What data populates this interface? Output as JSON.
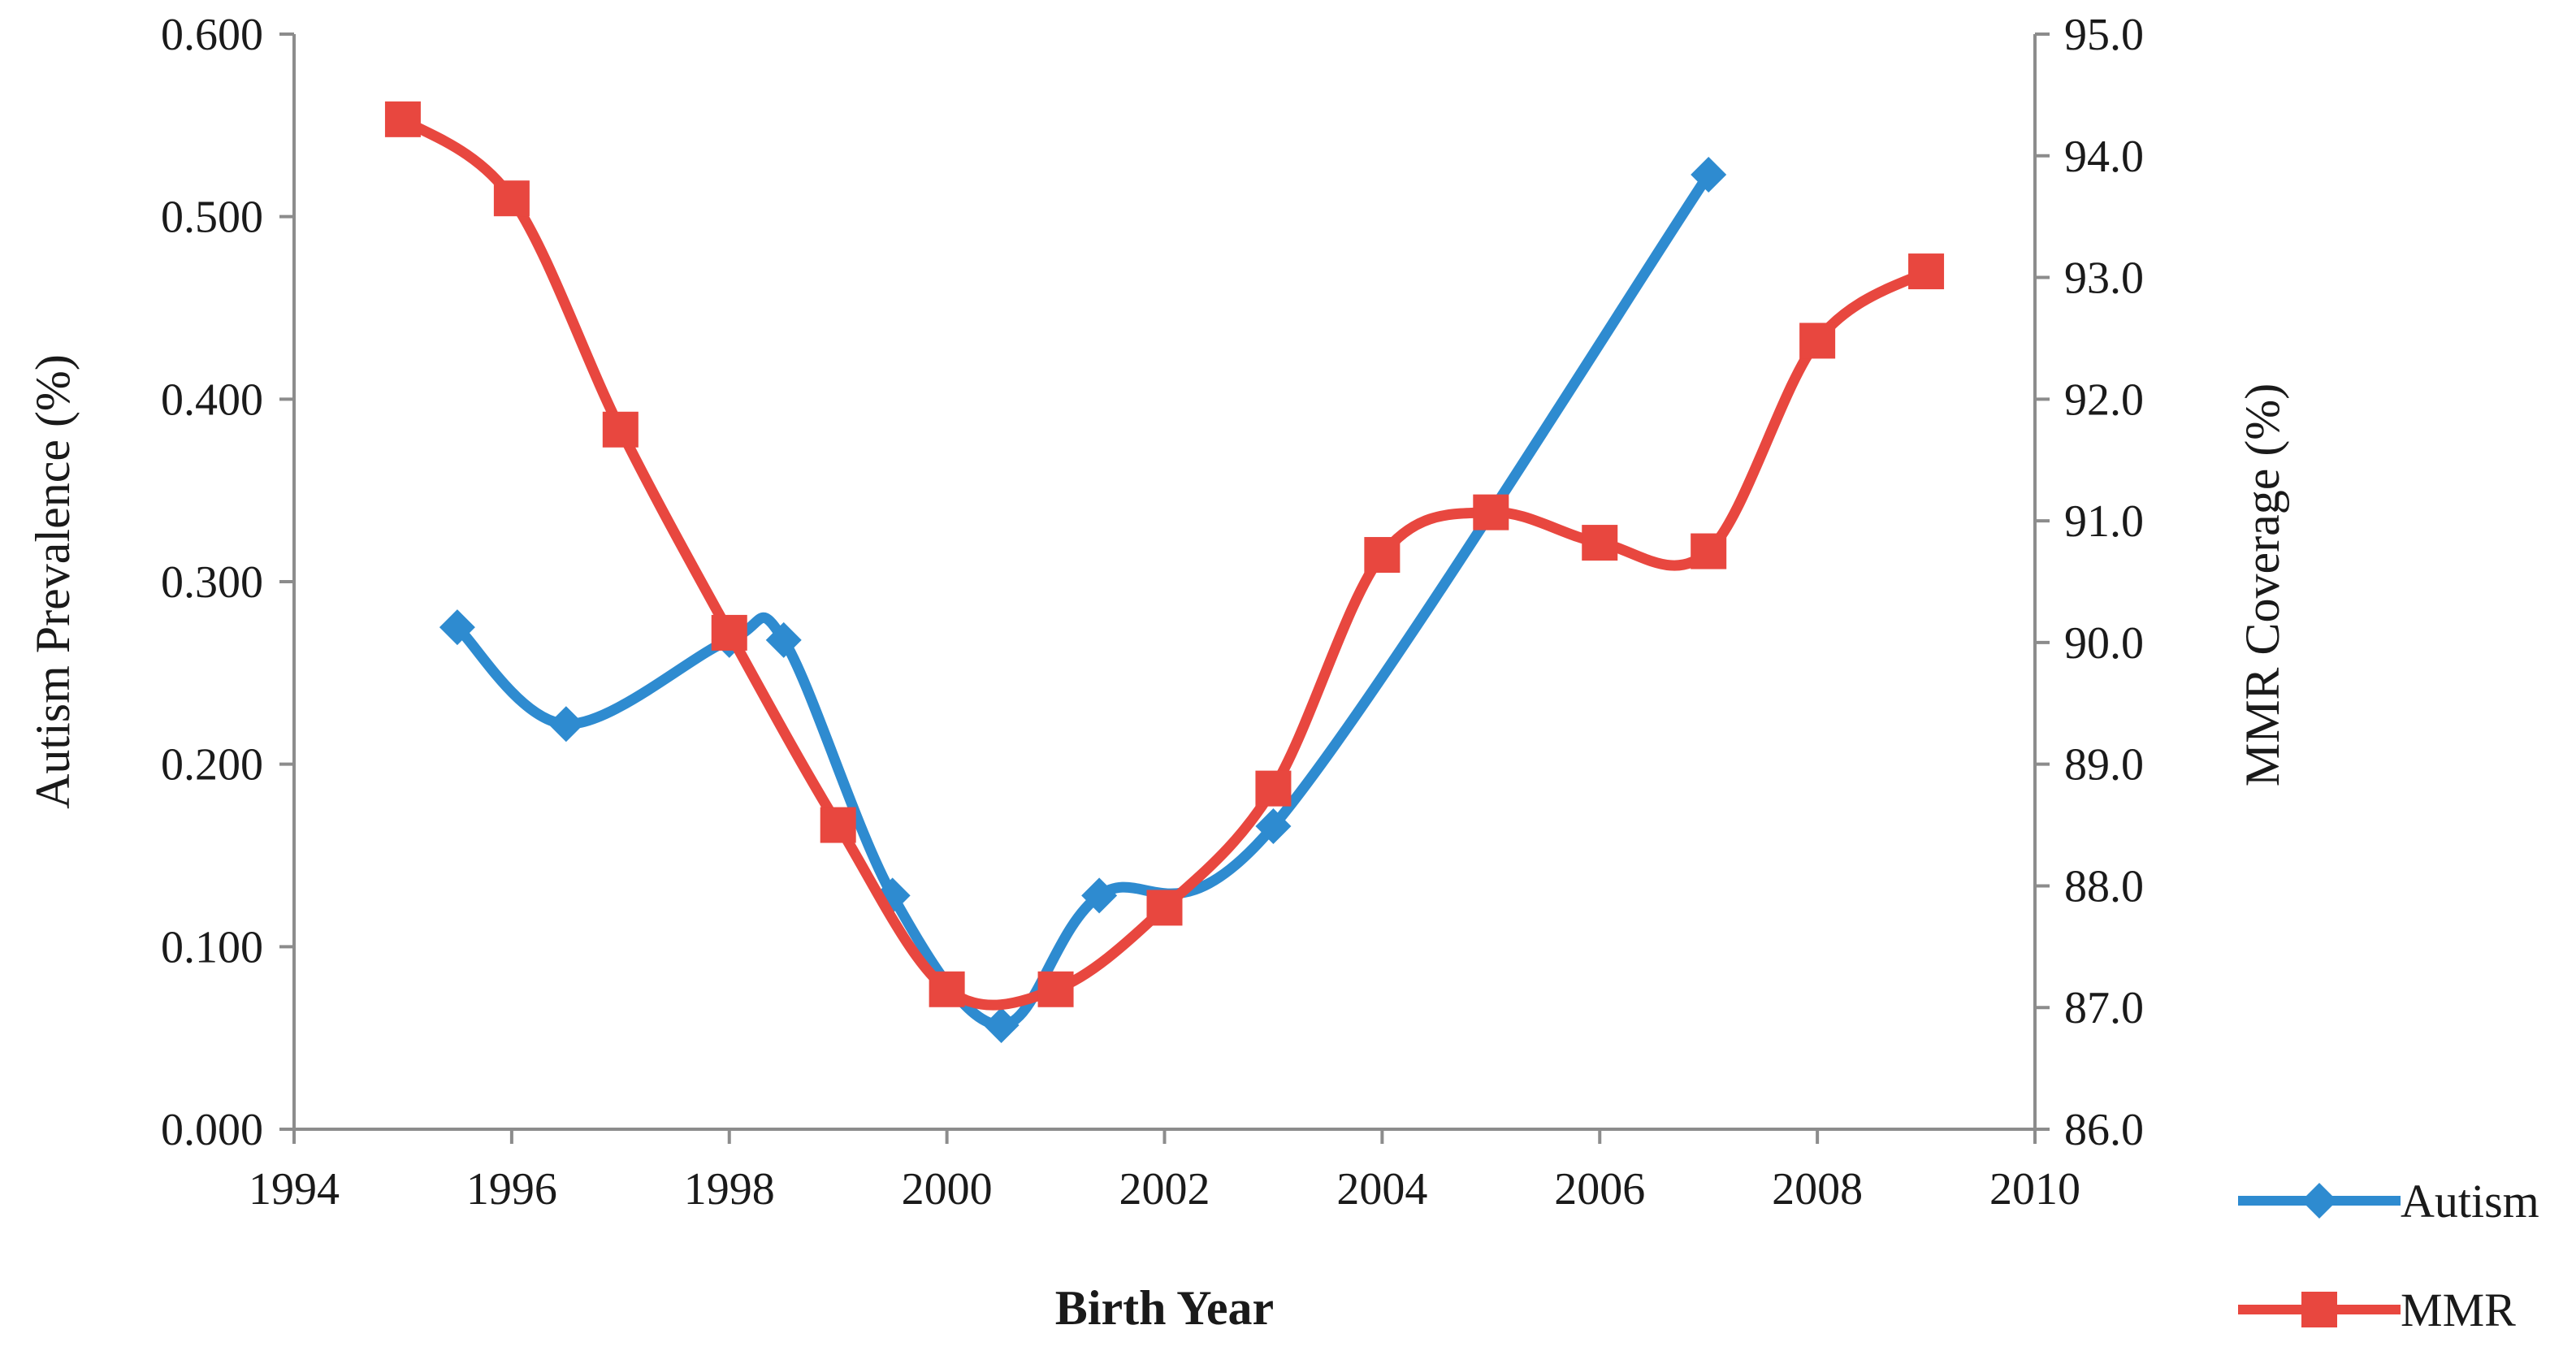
{
  "chart_data": {
    "type": "line",
    "title": "",
    "xlabel": "Birth Year",
    "ylabel_left": "Autism Prevalence (%)",
    "ylabel_right": "MMR Coverage (%)",
    "x_range": [
      1994,
      2010
    ],
    "x_ticks": [
      "1994",
      "1996",
      "1998",
      "2000",
      "2002",
      "2004",
      "2006",
      "2008",
      "2010"
    ],
    "y_left_range": [
      0,
      0.6
    ],
    "y_left_ticks": [
      "0.000",
      "0.100",
      "0.200",
      "0.300",
      "0.400",
      "0.500",
      "0.600"
    ],
    "y_right_range": [
      86,
      95
    ],
    "y_right_ticks": [
      "86.0",
      "87.0",
      "88.0",
      "89.0",
      "90.0",
      "91.0",
      "92.0",
      "93.0",
      "94.0",
      "95.0"
    ],
    "grid": false,
    "legend_position": "bottom-right",
    "series": [
      {
        "name": "Autism",
        "axis": "left",
        "color": "#2e8bd0",
        "marker": "diamond",
        "x": [
          1995.5,
          1996.5,
          1998.0,
          1998.5,
          1999.5,
          2000.5,
          2001.4,
          2003.0,
          2007.0
        ],
        "y": [
          0.275,
          0.222,
          0.268,
          0.268,
          0.128,
          0.057,
          0.128,
          0.166,
          0.523
        ]
      },
      {
        "name": "MMR",
        "axis": "right",
        "color": "#e8473f",
        "marker": "square",
        "x": [
          1995,
          1996,
          1997,
          1998,
          1999,
          2000,
          2001,
          2002,
          2003,
          2004,
          2005,
          2006,
          2007,
          2008,
          2009
        ],
        "y": [
          94.3,
          93.65,
          91.75,
          90.08,
          88.5,
          87.15,
          87.15,
          87.82,
          88.8,
          90.72,
          91.07,
          90.82,
          90.75,
          92.48,
          93.05
        ]
      }
    ]
  },
  "legend": {
    "autism_label": "Autism",
    "mmr_label": "MMR"
  }
}
